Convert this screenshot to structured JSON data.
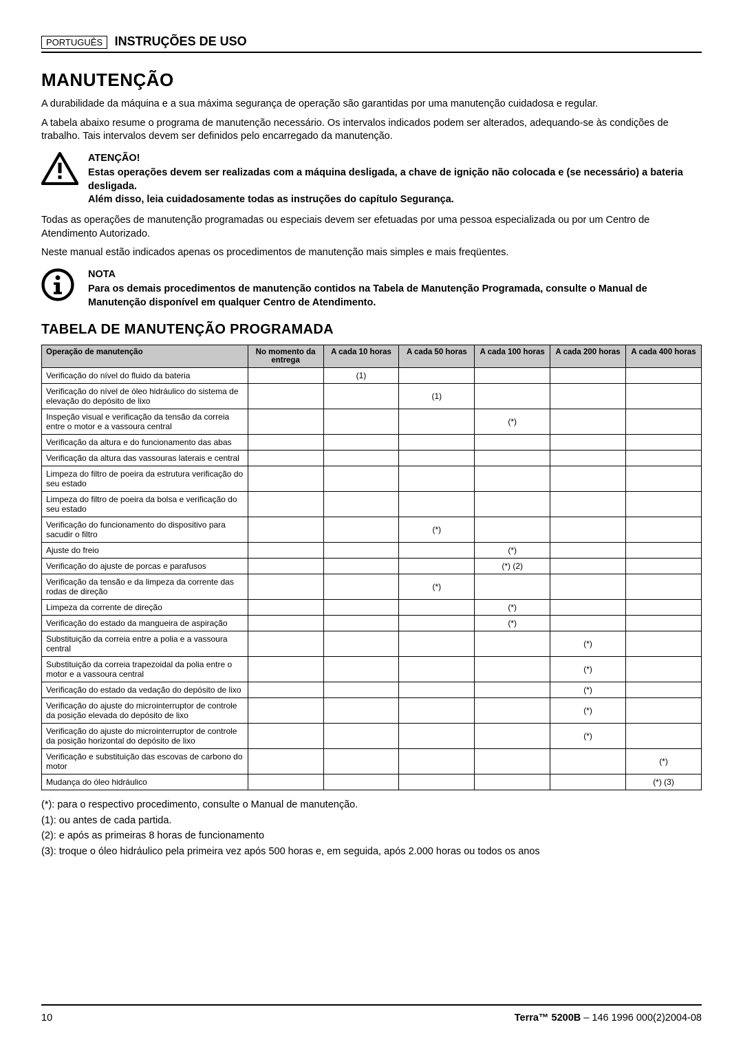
{
  "header": {
    "language_badge": "PORTUGUÊS",
    "doc_title": "INSTRUÇÕES DE USO"
  },
  "main_title": "MANUTENÇÃO",
  "intro_paragraphs": [
    "A durabilidade da máquina e a sua máxima segurança de operação são garantidas por uma manutenção cuidadosa e regular.",
    "A tabela abaixo resume o programa de manutenção necessário. Os intervalos indicados podem ser alterados, adequando-se às condições de trabalho. Tais intervalos devem ser definidos pelo encarregado da manutenção."
  ],
  "warning": {
    "heading": "ATENÇÃO!",
    "body_lines": [
      "Estas operações devem ser realizadas com a máquina desligada, a chave de ignição não colocada e (se necessário) a bateria desligada.",
      "Além disso, leia cuidadosamente todas as instruções do capítulo Segurança."
    ]
  },
  "mid_paragraphs": [
    "Todas as operações de manutenção programadas ou especiais devem ser efetuadas por uma pessoa especializada ou por um Centro de Atendimento Autorizado.",
    "Neste manual estão indicados apenas os procedimentos de manutenção mais simples e mais freqüentes."
  ],
  "note": {
    "heading": "NOTA",
    "body_lines": [
      "Para os demais procedimentos de manutenção contidos na Tabela de Manutenção Programada, consulte o Manual de Manutenção disponível em qualquer Centro de Atendimento."
    ]
  },
  "table": {
    "title": "TABELA DE MANUTENÇÃO PROGRAMADA",
    "columns": [
      "Operação de manutenção",
      "No momento da entrega",
      "A cada 10 horas",
      "A cada 50 horas",
      "A cada 100 horas",
      "A cada 200 horas",
      "A cada 400 horas"
    ],
    "rows": [
      {
        "op": "Verificação do nível do fluido da bateria",
        "cells": [
          "",
          "(1)",
          "",
          "",
          "",
          ""
        ]
      },
      {
        "op": "Verificação do nível de óleo hidráulico do sistema de elevação do depósito de lixo",
        "cells": [
          "",
          "",
          "(1)",
          "",
          "",
          ""
        ]
      },
      {
        "op": "Inspeção visual e verificação da tensão da correia entre o motor e a vassoura central",
        "cells": [
          "",
          "",
          "",
          "(*)",
          "",
          ""
        ]
      },
      {
        "op": "Verificação da altura e do funcionamento das abas",
        "cells": [
          "",
          "",
          "",
          "",
          "",
          ""
        ]
      },
      {
        "op": "Verificação da altura das vassouras laterais e central",
        "cells": [
          "",
          "",
          "",
          "",
          "",
          ""
        ]
      },
      {
        "op": "Limpeza do filtro de poeira da estrutura verificação do seu estado",
        "cells": [
          "",
          "",
          "",
          "",
          "",
          ""
        ]
      },
      {
        "op": "Limpeza do filtro de poeira da bolsa e verificação do seu estado",
        "cells": [
          "",
          "",
          "",
          "",
          "",
          ""
        ]
      },
      {
        "op": "Verificação do funcionamento do dispositivo para sacudir o filtro",
        "cells": [
          "",
          "",
          "(*)",
          "",
          "",
          ""
        ]
      },
      {
        "op": "Ajuste do freio",
        "cells": [
          "",
          "",
          "",
          "(*)",
          "",
          ""
        ]
      },
      {
        "op": "Verificação do ajuste de porcas e parafusos",
        "cells": [
          "",
          "",
          "",
          "(*) (2)",
          "",
          ""
        ]
      },
      {
        "op": "Verificação da tensão e da limpeza da corrente das rodas de direção",
        "cells": [
          "",
          "",
          "(*)",
          "",
          "",
          ""
        ]
      },
      {
        "op": "Limpeza da corrente de direção",
        "cells": [
          "",
          "",
          "",
          "(*)",
          "",
          ""
        ]
      },
      {
        "op": "Verificação do estado da mangueira de aspiração",
        "cells": [
          "",
          "",
          "",
          "(*)",
          "",
          ""
        ]
      },
      {
        "op": "Substituição da correia entre a polia e a vassoura central",
        "cells": [
          "",
          "",
          "",
          "",
          "(*)",
          ""
        ]
      },
      {
        "op": "Substituição da correia trapezoidal da polia entre o motor e a vassoura central",
        "cells": [
          "",
          "",
          "",
          "",
          "(*)",
          ""
        ]
      },
      {
        "op": "Verificação do estado da vedação do depósito de lixo",
        "cells": [
          "",
          "",
          "",
          "",
          "(*)",
          ""
        ]
      },
      {
        "op": "Verificação do ajuste do microinterruptor de controle da posição elevada do depósito de lixo",
        "cells": [
          "",
          "",
          "",
          "",
          "(*)",
          ""
        ]
      },
      {
        "op": "Verificação do ajuste do microinterruptor de controle da posição horizontal do depósito de lixo",
        "cells": [
          "",
          "",
          "",
          "",
          "(*)",
          ""
        ]
      },
      {
        "op": "Verificação e substituição das escovas de carbono do motor",
        "cells": [
          "",
          "",
          "",
          "",
          "",
          "(*)"
        ]
      },
      {
        "op": "Mudança do óleo hidráulico",
        "cells": [
          "",
          "",
          "",
          "",
          "",
          "(*) (3)"
        ]
      }
    ],
    "header_bg": "#c8c8c8",
    "border_color": "#000000",
    "font_size_pt": 9
  },
  "footnotes": [
    "(*):  para o respectivo procedimento, consulte o Manual de manutenção.",
    "(1):  ou antes de cada partida.",
    "(2):  e após as primeiras 8 horas de funcionamento",
    "(3):  troque o óleo hidráulico pela primeira vez após 500 horas e, em seguida, após 2.000 horas ou todos os anos"
  ],
  "footer": {
    "page_number": "10",
    "model": "Terra™ 5200B",
    "code": " – 146 1996 000(2)2004-08"
  }
}
